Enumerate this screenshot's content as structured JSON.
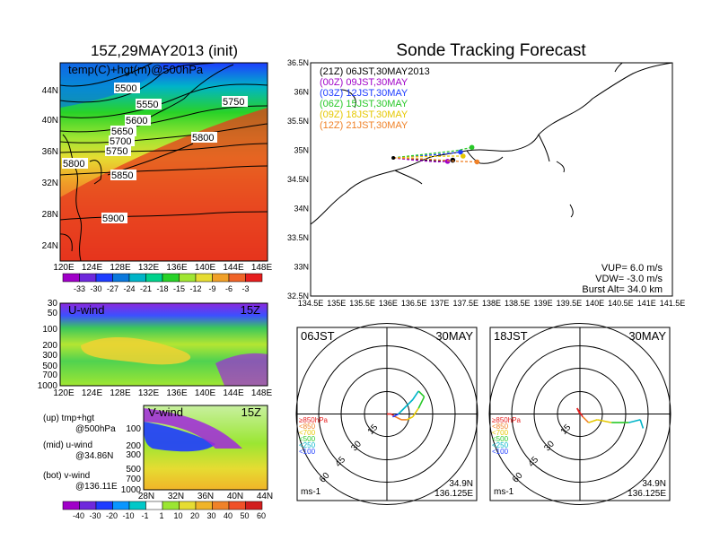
{
  "left_title": "15Z,29MAY2013 (init)",
  "right_title": "Sonde Tracking Forecast",
  "upper_map": {
    "label": "temp(C)+hgt(m)@500hPa",
    "lat_ticks": [
      "44N",
      "40N",
      "36N",
      "32N",
      "28N",
      "24N"
    ],
    "lon_ticks": [
      "120E",
      "124E",
      "128E",
      "132E",
      "136E",
      "140E",
      "144E",
      "148E"
    ],
    "contour_labels": [
      "5500",
      "5550",
      "5600",
      "5650",
      "5700",
      "5750",
      "5750",
      "5800",
      "5800",
      "5850",
      "5900"
    ],
    "colorbar_ticks": [
      "-33",
      "-30",
      "-27",
      "-24",
      "-21",
      "-18",
      "-15",
      "-12",
      "-9",
      "-6",
      "-3"
    ],
    "colorbar_colors": [
      "#a000c8",
      "#6e28dc",
      "#1e3cff",
      "#0a78dc",
      "#00b4c8",
      "#00d28c",
      "#28d228",
      "#a0e632",
      "#e6dc32",
      "#f0a028",
      "#f06428",
      "#e61e1e"
    ]
  },
  "u_wind": {
    "label": "U-wind",
    "time": "15Z",
    "p_ticks": [
      "30",
      "50",
      "100",
      "200",
      "300",
      "500",
      "700",
      "1000"
    ],
    "lon_ticks": [
      "120E",
      "124E",
      "128E",
      "132E",
      "136E",
      "140E",
      "144E",
      "148E"
    ]
  },
  "v_wind": {
    "label": "V-wind",
    "time": "15Z",
    "p_ticks": [
      "100",
      "200",
      "300",
      "500",
      "700",
      "1000"
    ],
    "lat_ticks": [
      "28N",
      "32N",
      "36N",
      "40N",
      "44N"
    ]
  },
  "legend_lines": [
    "(up) tmp+hgt",
    "@500hPa",
    "(mid) u-wind",
    "@34.86N",
    "(bot) v-wind",
    "@136.11E"
  ],
  "bottom_colorbar": {
    "ticks": [
      "-40",
      "-30",
      "-20",
      "-10",
      "-1",
      "1",
      "10",
      "20",
      "30",
      "40",
      "50",
      "60"
    ],
    "colors": [
      "#a000c8",
      "#6e28dc",
      "#1e3cff",
      "#0a96ff",
      "#00c8c8",
      "#ffffff",
      "#9be632",
      "#e6dc32",
      "#f0b428",
      "#f08228",
      "#f05028",
      "#d21e1e"
    ]
  },
  "tracking_map": {
    "lat_ticks": [
      "36.5N",
      "36N",
      "35.5N",
      "35N",
      "34.5N",
      "34N",
      "33.5N",
      "33N",
      "32.5N"
    ],
    "lon_ticks": [
      "134.5E",
      "135E",
      "135.5E",
      "136E",
      "136.5E",
      "137E",
      "137.5E",
      "138E",
      "138.5E",
      "139E",
      "139.5E",
      "140E",
      "140.5E",
      "141E",
      "141.5E"
    ],
    "runs": [
      {
        "text": "(21Z)  06JST,30MAY2013",
        "color": "#000000"
      },
      {
        "text": "(00Z)  09JST,30MAY",
        "color": "#a000c8"
      },
      {
        "text": "(03Z)  12JST,30MAY",
        "color": "#1e3cff"
      },
      {
        "text": "(06Z)  15JST,30MAY",
        "color": "#28c828"
      },
      {
        "text": "(09Z)  18JST,30MAY",
        "color": "#e6c800"
      },
      {
        "text": "(12Z)  21JST,30MAY",
        "color": "#f08228"
      }
    ],
    "vup": "VUP=  6.0  m/s",
    "vdw": "VDW=  -3.0  m/s",
    "burst": "Burst Alt=  34.0  km",
    "launch": {
      "lon": 136.1,
      "lat": 34.87
    }
  },
  "hodographs": [
    {
      "time": "06JST",
      "date": "30MAY",
      "lat": "34.9N",
      "lon": "136.125E",
      "unit": "ms-1",
      "ring_labels": [
        "15",
        "30",
        "45",
        "60"
      ],
      "levels": [
        {
          "text": "≥850hPa",
          "color": "#e61e1e"
        },
        {
          "text": "<850",
          "color": "#f08228"
        },
        {
          "text": "<700",
          "color": "#e6c800"
        },
        {
          "text": "<500",
          "color": "#28c828"
        },
        {
          "text": "<250",
          "color": "#00b4c8"
        },
        {
          "text": "<100",
          "color": "#1e3cff"
        }
      ]
    },
    {
      "time": "18JST",
      "date": "30MAY",
      "lat": "34.9N",
      "lon": "136.125E",
      "unit": "ms-1",
      "ring_labels": [
        "15",
        "30",
        "45",
        "60"
      ],
      "levels": [
        {
          "text": "≥850hPa",
          "color": "#e61e1e"
        },
        {
          "text": "<850",
          "color": "#f08228"
        },
        {
          "text": "<700",
          "color": "#e6c800"
        },
        {
          "text": "<500",
          "color": "#28c828"
        },
        {
          "text": "<250",
          "color": "#00b4c8"
        },
        {
          "text": "<100",
          "color": "#1e3cff"
        }
      ]
    }
  ],
  "chart_data": {
    "type": "scatter",
    "title": "Sonde Tracking Forecast",
    "xlim": [
      134.5,
      141.5
    ],
    "ylim": [
      32.5,
      36.5
    ],
    "series": [
      {
        "name": "(21Z)  06JST,30MAY2013",
        "x": [
          136.1,
          136.5,
          137.0,
          137.25
        ],
        "y": [
          34.87,
          34.84,
          34.82,
          34.83
        ]
      },
      {
        "name": "(00Z)  09JST,30MAY",
        "x": [
          136.1,
          136.5,
          136.95,
          137.15
        ],
        "y": [
          34.87,
          34.83,
          34.8,
          34.81
        ]
      },
      {
        "name": "(03Z)  12JST,30MAY",
        "x": [
          136.1,
          136.6,
          137.1,
          137.4
        ],
        "y": [
          34.87,
          34.9,
          34.94,
          34.97
        ]
      },
      {
        "name": "(06Z)  15JST,30MAY",
        "x": [
          136.1,
          136.7,
          137.3,
          137.62
        ],
        "y": [
          34.87,
          34.93,
          34.99,
          35.05
        ]
      },
      {
        "name": "(09Z)  18JST,30MAY",
        "x": [
          136.1,
          136.6,
          137.2,
          137.45
        ],
        "y": [
          34.87,
          34.89,
          34.9,
          34.9
        ]
      },
      {
        "name": "(12Z)  21JST,30MAY",
        "x": [
          136.1,
          136.7,
          137.35,
          137.72
        ],
        "y": [
          34.87,
          34.85,
          34.81,
          34.8
        ]
      }
    ]
  }
}
